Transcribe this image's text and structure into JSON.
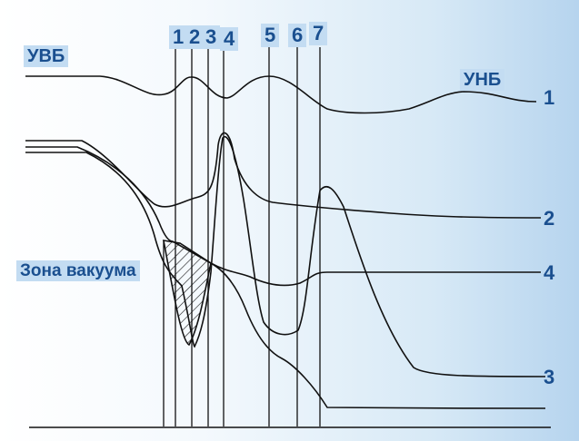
{
  "labels": {
    "upstream": "УВБ",
    "downstream": "УНБ",
    "vacuum_zone": "Зона вакуума"
  },
  "sections": [
    "1",
    "2",
    "3",
    "4",
    "5",
    "6",
    "7"
  ],
  "curve_numbers": [
    "1",
    "2",
    "4",
    "3"
  ],
  "colors": {
    "label": "#1a4f8f",
    "tag_background": "#c3dcf2",
    "line": "#111111"
  }
}
